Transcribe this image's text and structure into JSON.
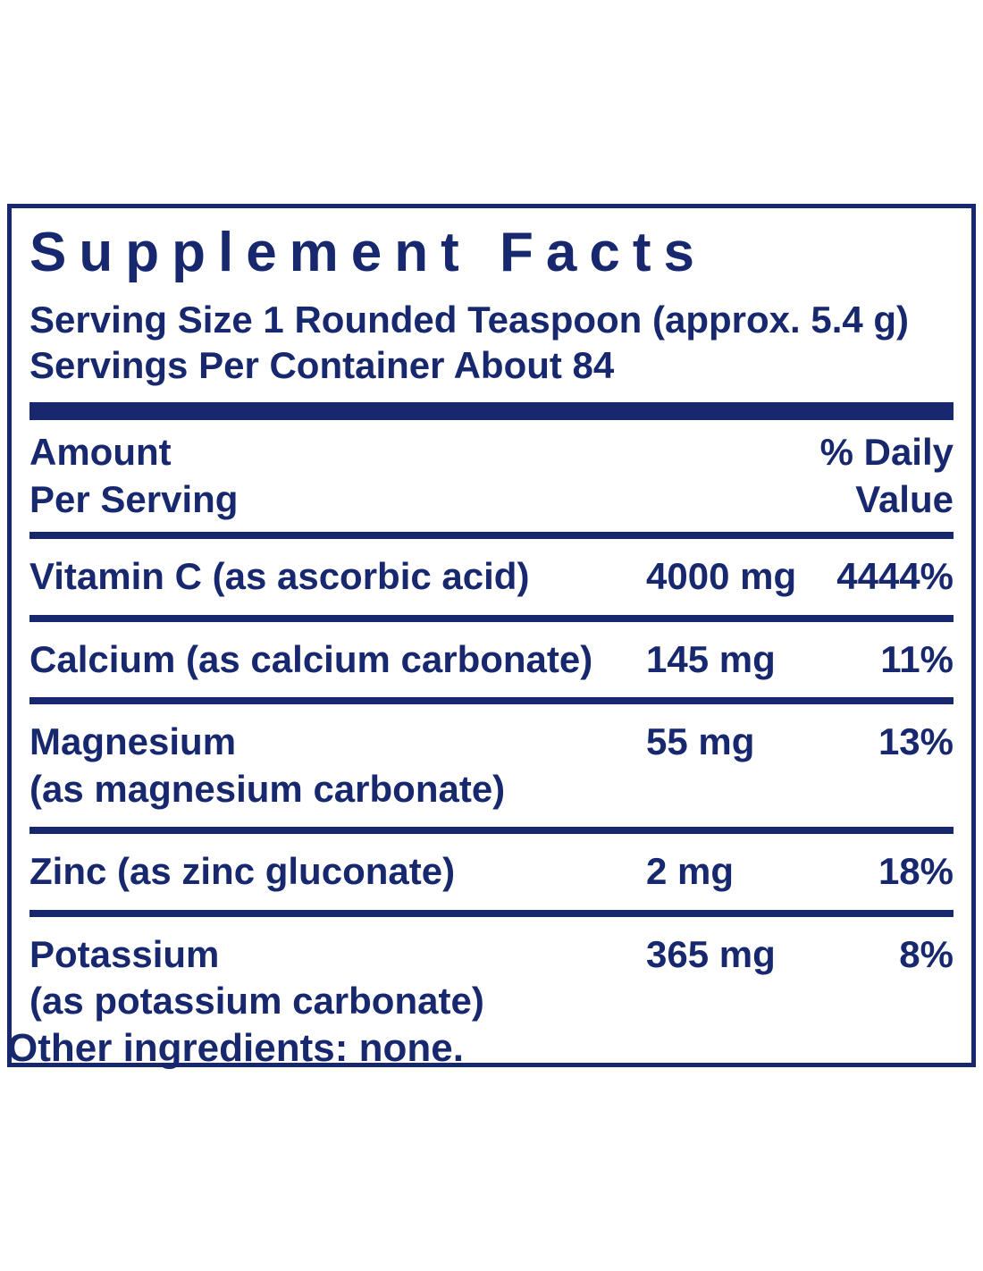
{
  "colors": {
    "navy": "#17286E",
    "background": "#FFFFFF"
  },
  "supplement_facts": {
    "title": "Supplement Facts",
    "serving_size": "Serving Size 1 Rounded Teaspoon (approx. 5.4 g)",
    "servings_per_container": "Servings Per Container About 84",
    "columns": {
      "amount_line1": "Amount",
      "amount_line2": "Per Serving",
      "dv_line1": "% Daily",
      "dv_line2": "Value"
    },
    "rows": [
      {
        "name": "Vitamin C (as ascorbic acid)",
        "name2": "",
        "amount": "4000 mg",
        "dv": "4444%"
      },
      {
        "name": "Calcium (as calcium carbonate)",
        "name2": "",
        "amount": "145 mg",
        "dv": "11%"
      },
      {
        "name": "Magnesium",
        "name2": "(as magnesium carbonate)",
        "amount": "55 mg",
        "dv": "13%"
      },
      {
        "name": "Zinc (as zinc gluconate)",
        "name2": "",
        "amount": "2 mg",
        "dv": "18%"
      },
      {
        "name": "Potassium",
        "name2": "(as potassium carbonate)",
        "amount": "365 mg",
        "dv": "8%"
      }
    ],
    "footer": "Other ingredients: none."
  }
}
